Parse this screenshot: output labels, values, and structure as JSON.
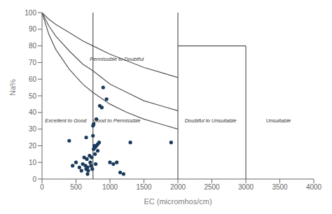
{
  "chart_data": {
    "type": "scatter",
    "xlabel": "EC (micromhos/cm)",
    "ylabel": "Na%",
    "xlim": [
      0,
      4000
    ],
    "ylim": [
      0,
      100
    ],
    "xticks": [
      0,
      500,
      1000,
      1500,
      2000,
      2500,
      3000,
      3500,
      4000
    ],
    "yticks": [
      0,
      10,
      20,
      30,
      40,
      50,
      60,
      70,
      80,
      90,
      100
    ],
    "grid": false,
    "series": [
      {
        "type": "line",
        "color": "#555555",
        "x": [
          0,
          100,
          200,
          400,
          600,
          750,
          1000,
          1250,
          1500,
          1750,
          2000
        ],
        "values": [
          100,
          87,
          78,
          66,
          57,
          52,
          45,
          40,
          36,
          33,
          30
        ]
      },
      {
        "type": "line",
        "color": "#555555",
        "x": [
          0,
          100,
          200,
          400,
          600,
          750,
          1000,
          1250,
          1500,
          1750,
          2000
        ],
        "values": [
          100,
          92,
          86,
          77,
          69,
          65,
          57,
          52,
          47,
          44,
          41
        ]
      },
      {
        "type": "line",
        "color": "#555555",
        "x": [
          0,
          100,
          200,
          400,
          600,
          750,
          1000,
          1250,
          1500,
          1750,
          2000
        ],
        "values": [
          100,
          96,
          93,
          88,
          83,
          80,
          75,
          71,
          67,
          64,
          61
        ]
      },
      {
        "type": "line",
        "color": "#555555",
        "x": [
          750,
          750
        ],
        "values": [
          0,
          100
        ]
      },
      {
        "type": "line",
        "color": "#555555",
        "x": [
          2000,
          2000
        ],
        "values": [
          0,
          100
        ]
      },
      {
        "type": "line",
        "color": "#555555",
        "x": [
          2000,
          3000
        ],
        "values": [
          80,
          80
        ]
      },
      {
        "type": "line",
        "color": "#555555",
        "x": [
          3000,
          3000
        ],
        "values": [
          0,
          80
        ]
      },
      {
        "type": "scatter",
        "color": "#1b3a5c",
        "x": [
          400,
          450,
          500,
          550,
          580,
          600,
          620,
          640,
          650,
          660,
          670,
          680,
          700,
          710,
          720,
          730,
          740,
          750,
          760,
          770,
          780,
          790,
          800,
          820,
          850,
          880,
          900,
          950,
          1000,
          1050,
          1100,
          1150,
          1200,
          1300,
          1900,
          750,
          760,
          780,
          800,
          820,
          840,
          650,
          670
        ],
        "values": [
          23,
          8,
          10,
          7,
          5,
          9,
          13,
          8,
          6,
          12,
          7,
          5,
          14,
          10,
          8,
          13,
          6,
          32,
          33,
          20,
          19,
          9,
          36,
          21,
          44,
          43,
          55,
          48,
          10,
          9,
          10,
          4,
          3,
          22,
          22,
          26,
          18,
          15,
          20,
          17,
          22,
          25,
          3
        ]
      }
    ],
    "annotations": [
      {
        "text": "Excellent to Good",
        "x": 350,
        "y": 35
      },
      {
        "text": "Good to Permissible",
        "x": 1100,
        "y": 35
      },
      {
        "text": "Permissible to Doubtful",
        "x": 1100,
        "y": 72
      },
      {
        "text": "Doubtful to Unsuitable",
        "x": 2480,
        "y": 35
      },
      {
        "text": "Unsuitable",
        "x": 3480,
        "y": 35
      }
    ]
  }
}
